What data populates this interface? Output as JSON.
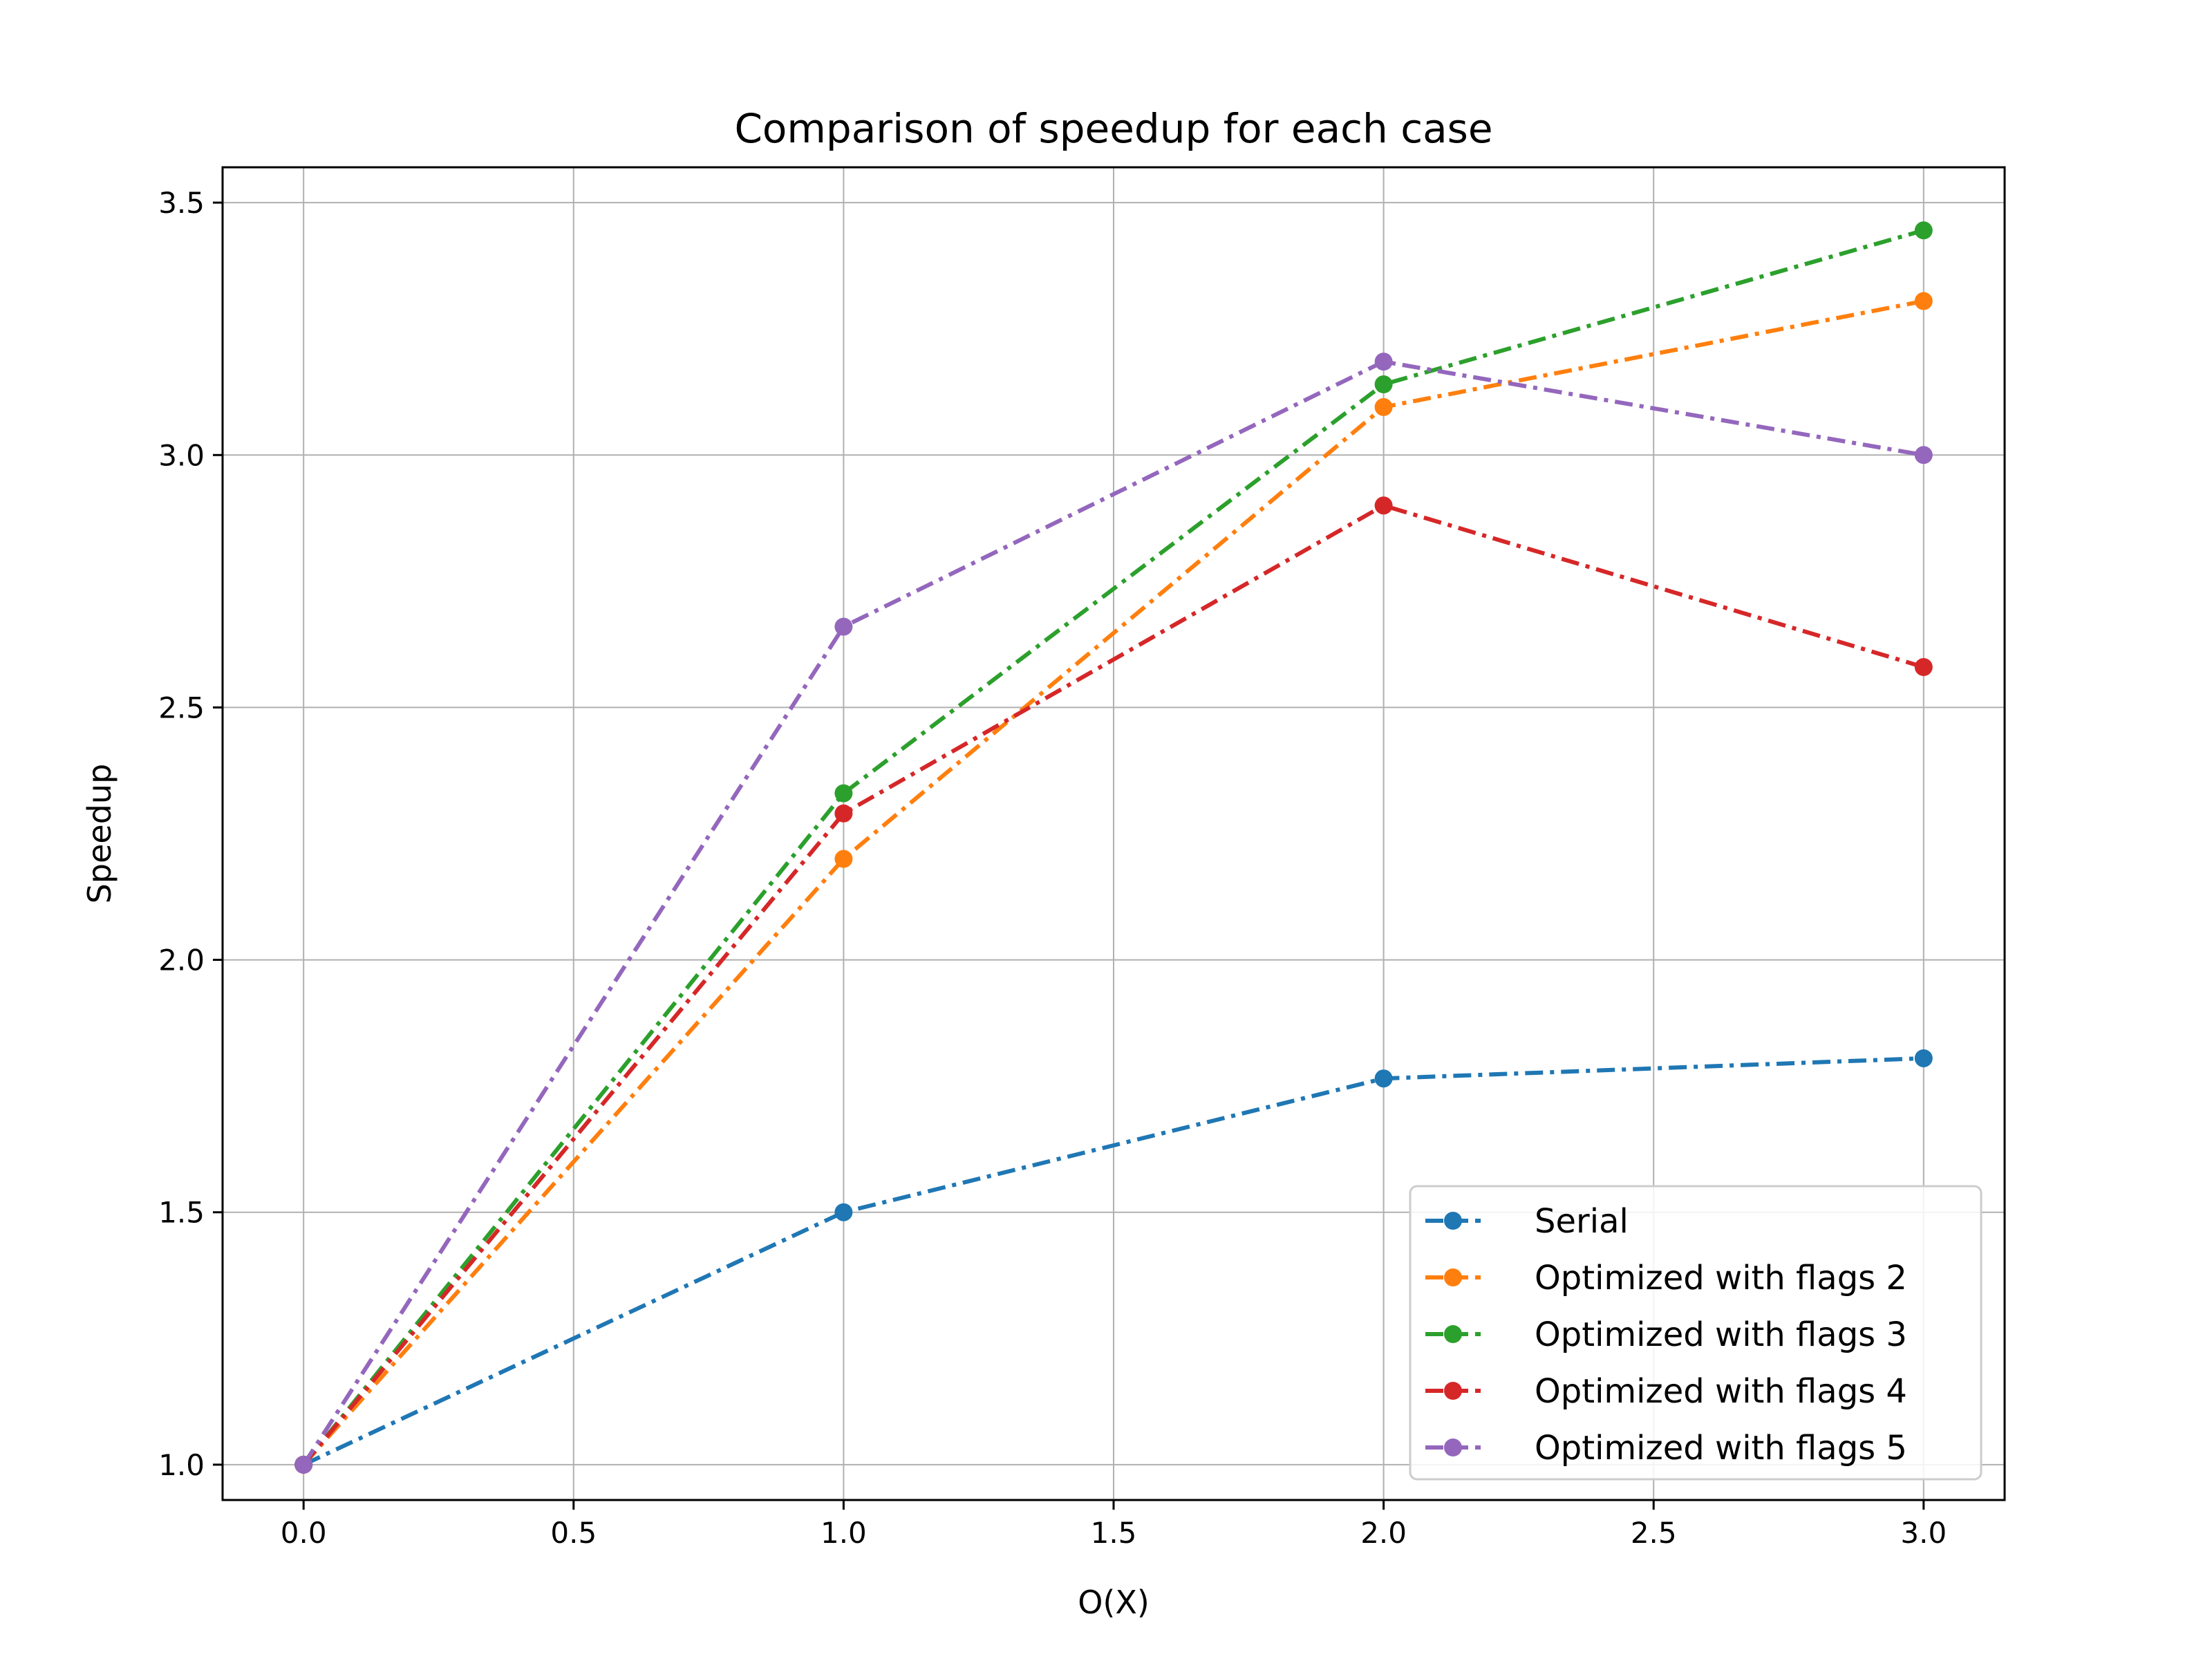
{
  "chart_data": {
    "type": "line",
    "title": "Comparison of speedup for each case",
    "xlabel": "O(X)",
    "ylabel": "Speedup",
    "x": [
      0,
      1,
      2,
      3
    ],
    "xlim": [
      -0.15,
      3.15
    ],
    "ylim": [
      0.93,
      3.57
    ],
    "xticks": [
      0.0,
      0.5,
      1.0,
      1.5,
      2.0,
      2.5,
      3.0
    ],
    "xtick_labels": [
      "0.0",
      "0.5",
      "1.0",
      "1.5",
      "2.0",
      "2.5",
      "3.0"
    ],
    "yticks": [
      1.0,
      1.5,
      2.0,
      2.5,
      3.0,
      3.5
    ],
    "ytick_labels": [
      "1.0",
      "1.5",
      "2.0",
      "2.5",
      "3.0",
      "3.5"
    ],
    "grid": true,
    "legend_position": "lower-right",
    "line_style": "dash-dot",
    "marker": "circle",
    "series": [
      {
        "name": "Serial",
        "color": "#1f77b4",
        "values": [
          1.0,
          1.5,
          1.765,
          1.805
        ]
      },
      {
        "name": "Optimized with flags 2",
        "color": "#ff7f0e",
        "values": [
          1.0,
          2.2,
          3.095,
          3.305
        ]
      },
      {
        "name": "Optimized with flags 3",
        "color": "#2ca02c",
        "values": [
          1.0,
          2.33,
          3.14,
          3.445
        ]
      },
      {
        "name": "Optimized with flags 4",
        "color": "#d62728",
        "values": [
          1.0,
          2.29,
          2.9,
          2.58
        ]
      },
      {
        "name": "Optimized with flags 5",
        "color": "#9467bd",
        "values": [
          1.0,
          2.66,
          3.185,
          3.0
        ]
      }
    ]
  }
}
